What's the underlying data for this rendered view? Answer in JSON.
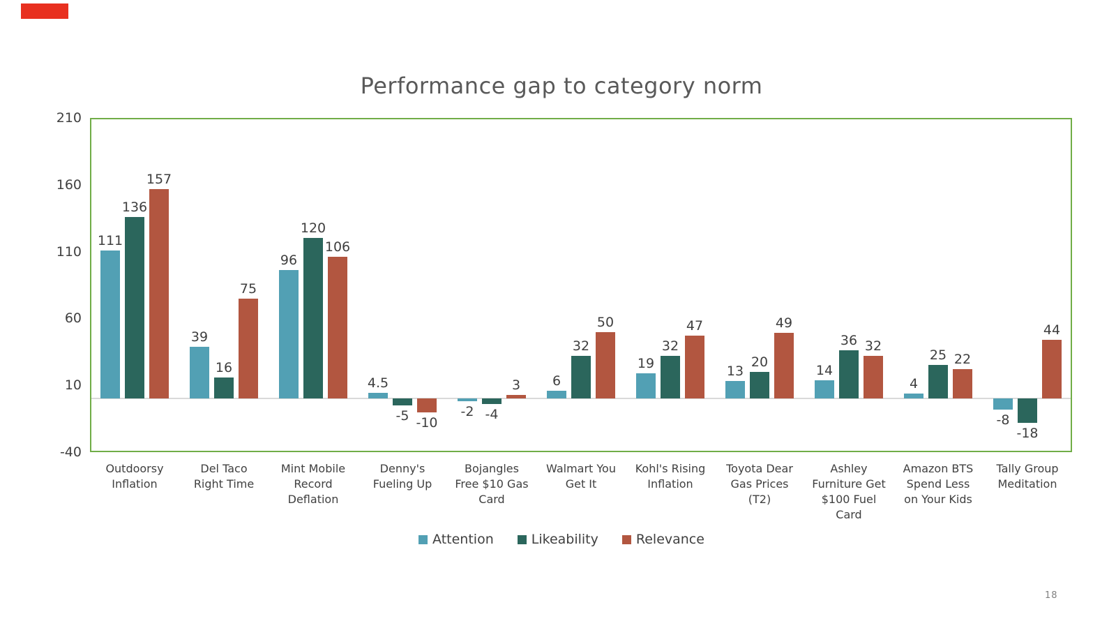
{
  "page": {
    "number": "18"
  },
  "decoration": {
    "red_marker_color": "#e8301f",
    "plot_border_color": "#70ad47"
  },
  "chart_data": {
    "type": "bar",
    "title": "Performance gap to category norm",
    "xlabel": "",
    "ylabel": "",
    "ylim": [
      -40,
      210
    ],
    "y_ticks": [
      210,
      160,
      110,
      60,
      10,
      -40
    ],
    "grid": false,
    "legend_position": "bottom",
    "categories": [
      "Outdoorsy Inflation",
      "Del Taco Right Time",
      "Mint Mobile Record Deflation",
      "Denny's Fueling Up",
      "Bojangles Free $10 Gas Card",
      "Walmart You Get It",
      "Kohl's Rising Inflation",
      "Toyota Dear Gas Prices (T2)",
      "Ashley Furniture Get $100 Fuel Card",
      "Amazon BTS Spend Less on Your Kids",
      "Tally Group Meditation"
    ],
    "category_lines": [
      [
        "Outdoorsy",
        "Inflation"
      ],
      [
        "Del Taco",
        "Right Time"
      ],
      [
        "Mint Mobile",
        "Record",
        "Deflation"
      ],
      [
        "Denny's",
        "Fueling Up"
      ],
      [
        "Bojangles",
        "Free $10 Gas",
        "Card"
      ],
      [
        "Walmart You",
        "Get It"
      ],
      [
        "Kohl's Rising",
        "Inflation"
      ],
      [
        "Toyota Dear",
        "Gas Prices",
        "(T2)"
      ],
      [
        "Ashley",
        "Furniture Get",
        "$100 Fuel",
        "Card"
      ],
      [
        "Amazon BTS",
        "Spend Less",
        "on Your Kids"
      ],
      [
        "Tally Group",
        "Meditation"
      ]
    ],
    "series": [
      {
        "name": "Attention",
        "color": "#52A0B4",
        "values": [
          111,
          39,
          96,
          4.5,
          -2,
          6,
          19,
          13,
          14,
          4,
          -8
        ],
        "labels": [
          "111",
          "39",
          "96",
          "4.5",
          "-2",
          "6",
          "19",
          "13",
          "14",
          "4",
          "-8"
        ]
      },
      {
        "name": "Likeability",
        "color": "#2B665C",
        "values": [
          136,
          16,
          120,
          -5,
          -4,
          32,
          32,
          20,
          36,
          25,
          -18
        ],
        "labels": [
          "136",
          "16",
          "120",
          "-5",
          "-4",
          "32",
          "32",
          "20",
          "36",
          "25",
          "-18"
        ]
      },
      {
        "name": "Relevance",
        "color": "#B25640",
        "values": [
          157,
          75,
          106,
          -10,
          3,
          50,
          47,
          49,
          32,
          22,
          44
        ],
        "labels": [
          "157",
          "75",
          "106",
          "-10",
          "3",
          "50",
          "47",
          "49",
          "32",
          "22",
          "44"
        ]
      }
    ]
  }
}
